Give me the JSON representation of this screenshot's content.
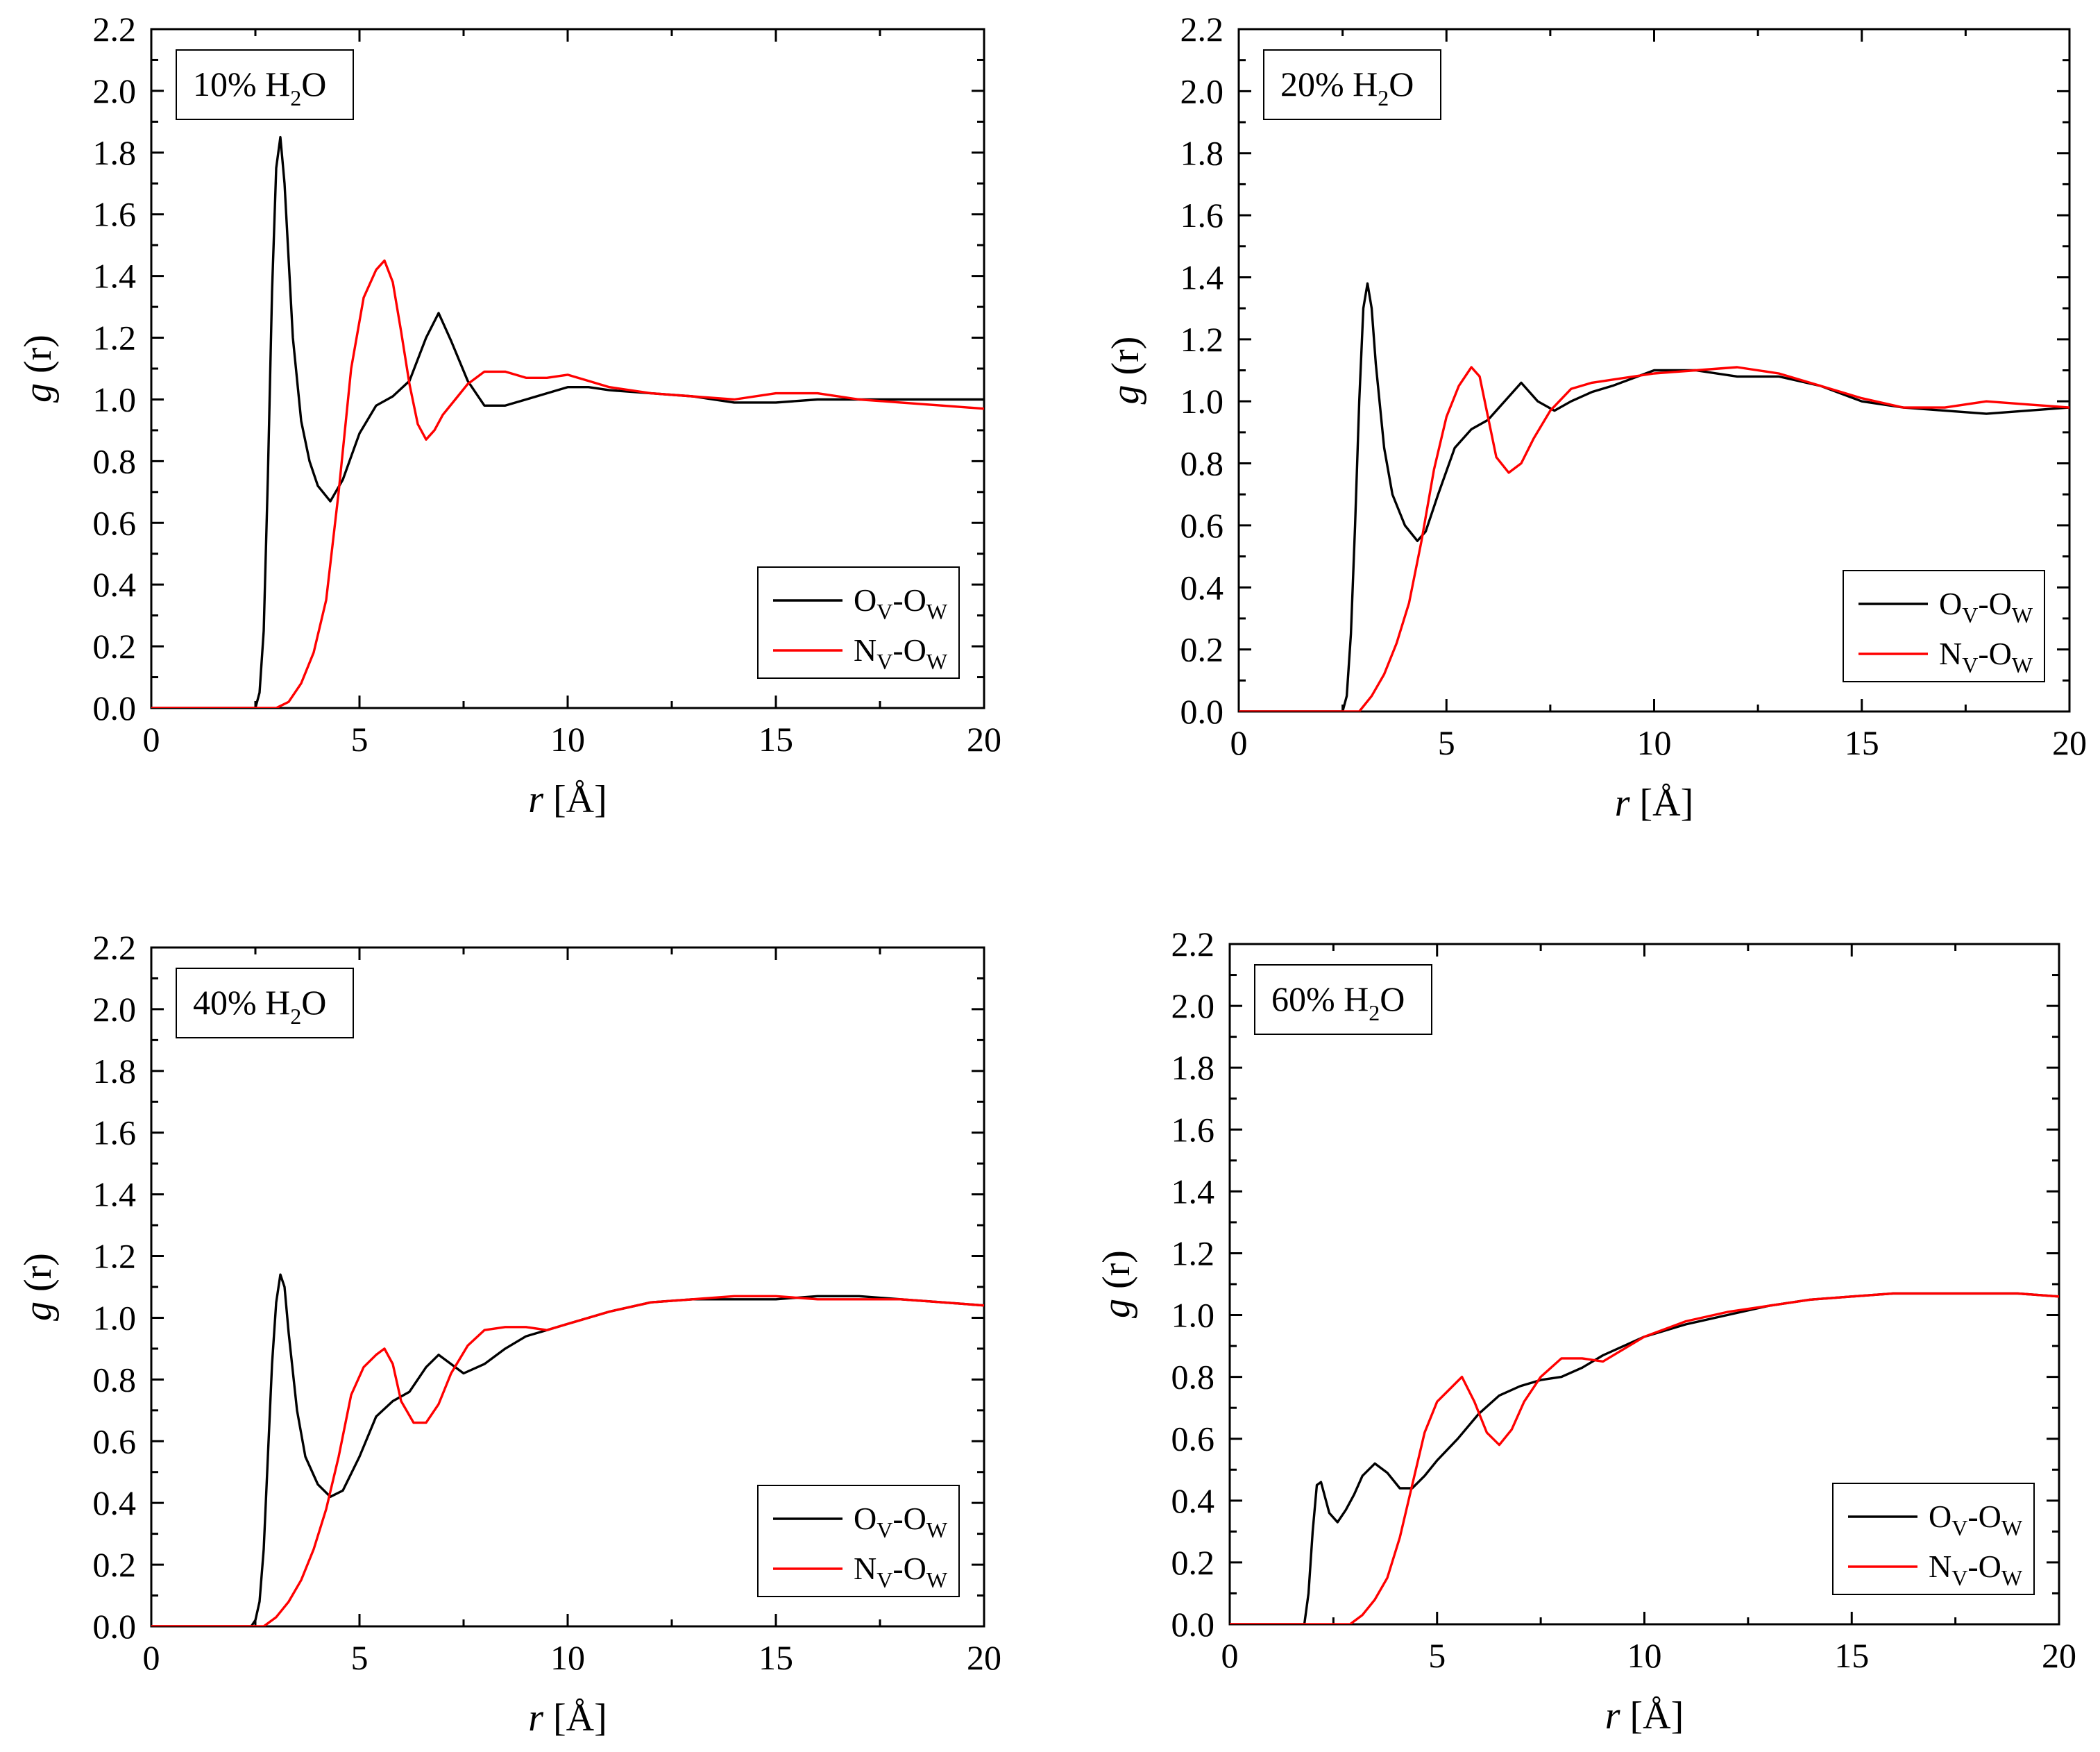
{
  "chart_data": [
    {
      "type": "line",
      "panel_label": "10% H2O",
      "label_pre": "10% H",
      "label_sub": "2",
      "label_post": "O",
      "xlabel_italic": "r",
      "xlabel_rest": " [Å]",
      "ylabel_italic": "g",
      "ylabel_rest": " (r)",
      "xlim": [
        0,
        20
      ],
      "ylim": [
        0,
        2.2
      ],
      "xticks": [
        0,
        5,
        10,
        15,
        20
      ],
      "yticks": [
        0.0,
        0.2,
        0.4,
        0.6,
        0.8,
        1.0,
        1.2,
        1.4,
        1.6,
        1.8,
        2.0,
        2.2
      ],
      "legend_position": "bottom-right",
      "series": [
        {
          "name": "OV-OW",
          "label_a": "O",
          "sub_a": "V",
          "label_b": "-O",
          "sub_b": "W",
          "color": "#000000",
          "x": [
            0,
            2.5,
            2.6,
            2.7,
            2.8,
            2.9,
            3.0,
            3.1,
            3.2,
            3.3,
            3.4,
            3.6,
            3.8,
            4.0,
            4.3,
            4.6,
            5.0,
            5.4,
            5.8,
            6.2,
            6.6,
            6.9,
            7.2,
            7.6,
            8.0,
            8.5,
            9.0,
            9.5,
            10.0,
            10.5,
            11.0,
            12.0,
            13.0,
            14.0,
            15.0,
            16.0,
            17.0,
            18.0,
            19.0,
            20.0
          ],
          "y": [
            0,
            0,
            0.05,
            0.25,
            0.75,
            1.35,
            1.75,
            1.85,
            1.7,
            1.45,
            1.2,
            0.93,
            0.8,
            0.72,
            0.67,
            0.74,
            0.89,
            0.98,
            1.01,
            1.06,
            1.2,
            1.28,
            1.19,
            1.06,
            0.98,
            0.98,
            1.0,
            1.02,
            1.04,
            1.04,
            1.03,
            1.02,
            1.01,
            0.99,
            0.99,
            1.0,
            1.0,
            1.0,
            1.0,
            1.0
          ]
        },
        {
          "name": "NV-OW",
          "label_a": "N",
          "sub_a": "V",
          "label_b": "-O",
          "sub_b": "W",
          "color": "#ff0000",
          "x": [
            0,
            3.0,
            3.3,
            3.6,
            3.9,
            4.2,
            4.5,
            4.8,
            5.1,
            5.4,
            5.6,
            5.8,
            6.0,
            6.2,
            6.4,
            6.6,
            6.8,
            7.0,
            7.3,
            7.6,
            8.0,
            8.5,
            9.0,
            9.5,
            10.0,
            10.5,
            11.0,
            12.0,
            13.0,
            14.0,
            15.0,
            16.0,
            17.0,
            18.0,
            19.0,
            20.0
          ],
          "y": [
            0,
            0,
            0.02,
            0.08,
            0.18,
            0.35,
            0.7,
            1.1,
            1.33,
            1.42,
            1.45,
            1.38,
            1.22,
            1.05,
            0.92,
            0.87,
            0.9,
            0.95,
            1.0,
            1.05,
            1.09,
            1.09,
            1.07,
            1.07,
            1.08,
            1.06,
            1.04,
            1.02,
            1.01,
            1.0,
            1.02,
            1.02,
            1.0,
            0.99,
            0.98,
            0.97
          ]
        }
      ]
    },
    {
      "type": "line",
      "panel_label": "20% H2O",
      "label_pre": "20% H",
      "label_sub": "2",
      "label_post": "O",
      "xlabel_italic": "r",
      "xlabel_rest": " [Å]",
      "ylabel_italic": "g",
      "ylabel_rest": " (r)",
      "xlim": [
        0,
        20
      ],
      "ylim": [
        0,
        2.2
      ],
      "xticks": [
        0,
        5,
        10,
        15,
        20
      ],
      "yticks": [
        0.0,
        0.2,
        0.4,
        0.6,
        0.8,
        1.0,
        1.2,
        1.4,
        1.6,
        1.8,
        2.0,
        2.2
      ],
      "legend_position": "bottom-right",
      "series": [
        {
          "name": "OV-OW",
          "label_a": "O",
          "sub_a": "V",
          "label_b": "-O",
          "sub_b": "W",
          "color": "#000000",
          "x": [
            0,
            2.5,
            2.6,
            2.7,
            2.8,
            2.9,
            3.0,
            3.1,
            3.2,
            3.3,
            3.5,
            3.7,
            4.0,
            4.3,
            4.5,
            4.8,
            5.2,
            5.6,
            6.0,
            6.4,
            6.8,
            7.2,
            7.6,
            8.0,
            8.5,
            9.0,
            10.0,
            11.0,
            12.0,
            13.0,
            14.0,
            15.0,
            16.0,
            17.0,
            18.0,
            19.0,
            20.0
          ],
          "y": [
            0,
            0,
            0.05,
            0.25,
            0.6,
            1.0,
            1.3,
            1.38,
            1.3,
            1.12,
            0.85,
            0.7,
            0.6,
            0.55,
            0.58,
            0.7,
            0.85,
            0.91,
            0.94,
            1.0,
            1.06,
            1.0,
            0.97,
            1.0,
            1.03,
            1.05,
            1.1,
            1.1,
            1.08,
            1.08,
            1.05,
            1.0,
            0.98,
            0.97,
            0.96,
            0.97,
            0.98
          ]
        },
        {
          "name": "NV-OW",
          "label_a": "N",
          "sub_a": "V",
          "label_b": "-O",
          "sub_b": "W",
          "color": "#ff0000",
          "x": [
            0,
            2.9,
            3.2,
            3.5,
            3.8,
            4.1,
            4.4,
            4.7,
            5.0,
            5.3,
            5.6,
            5.8,
            6.0,
            6.2,
            6.5,
            6.8,
            7.1,
            7.5,
            8.0,
            8.5,
            9.0,
            10.0,
            11.0,
            12.0,
            13.0,
            14.0,
            15.0,
            16.0,
            17.0,
            18.0,
            19.0,
            20.0
          ],
          "y": [
            0,
            0,
            0.05,
            0.12,
            0.22,
            0.35,
            0.55,
            0.78,
            0.95,
            1.05,
            1.11,
            1.08,
            0.95,
            0.82,
            0.77,
            0.8,
            0.88,
            0.97,
            1.04,
            1.06,
            1.07,
            1.09,
            1.1,
            1.11,
            1.09,
            1.05,
            1.01,
            0.98,
            0.98,
            1.0,
            0.99,
            0.98
          ]
        }
      ]
    },
    {
      "type": "line",
      "panel_label": "40% H2O",
      "label_pre": "40% H",
      "label_sub": "2",
      "label_post": "O",
      "xlabel_italic": "r",
      "xlabel_rest": " [Å]",
      "ylabel_italic": "g",
      "ylabel_rest": " (r)",
      "xlim": [
        0,
        20
      ],
      "ylim": [
        0,
        2.2
      ],
      "xticks": [
        0,
        5,
        10,
        15,
        20
      ],
      "yticks": [
        0.0,
        0.2,
        0.4,
        0.6,
        0.8,
        1.0,
        1.2,
        1.4,
        1.6,
        1.8,
        2.0,
        2.2
      ],
      "legend_position": "bottom-right",
      "series": [
        {
          "name": "OV-OW",
          "label_a": "O",
          "sub_a": "V",
          "label_b": "-O",
          "sub_b": "W",
          "color": "#000000",
          "x": [
            0,
            2.4,
            2.5,
            2.6,
            2.7,
            2.8,
            2.9,
            3.0,
            3.1,
            3.2,
            3.3,
            3.5,
            3.7,
            4.0,
            4.3,
            4.6,
            5.0,
            5.4,
            5.8,
            6.2,
            6.6,
            6.9,
            7.2,
            7.5,
            8.0,
            8.5,
            9.0,
            9.5,
            10.0,
            11.0,
            12.0,
            13.0,
            14.0,
            15.0,
            16.0,
            17.0,
            18.0,
            19.0,
            20.0
          ],
          "y": [
            0,
            0,
            0.02,
            0.08,
            0.25,
            0.55,
            0.85,
            1.05,
            1.14,
            1.1,
            0.95,
            0.7,
            0.55,
            0.46,
            0.42,
            0.44,
            0.55,
            0.68,
            0.73,
            0.76,
            0.84,
            0.88,
            0.85,
            0.82,
            0.85,
            0.9,
            0.94,
            0.96,
            0.98,
            1.02,
            1.05,
            1.06,
            1.06,
            1.06,
            1.07,
            1.07,
            1.06,
            1.05,
            1.04
          ]
        },
        {
          "name": "NV-OW",
          "label_a": "N",
          "sub_a": "V",
          "label_b": "-O",
          "sub_b": "W",
          "color": "#ff0000",
          "x": [
            0,
            2.7,
            3.0,
            3.3,
            3.6,
            3.9,
            4.2,
            4.5,
            4.8,
            5.1,
            5.4,
            5.6,
            5.8,
            6.0,
            6.3,
            6.6,
            6.9,
            7.2,
            7.6,
            8.0,
            8.5,
            9.0,
            9.5,
            10.0,
            11.0,
            12.0,
            13.0,
            14.0,
            15.0,
            16.0,
            17.0,
            18.0,
            19.0,
            20.0
          ],
          "y": [
            0,
            0,
            0.03,
            0.08,
            0.15,
            0.25,
            0.38,
            0.55,
            0.75,
            0.84,
            0.88,
            0.9,
            0.85,
            0.73,
            0.66,
            0.66,
            0.72,
            0.82,
            0.91,
            0.96,
            0.97,
            0.97,
            0.96,
            0.98,
            1.02,
            1.05,
            1.06,
            1.07,
            1.07,
            1.06,
            1.06,
            1.06,
            1.05,
            1.04
          ]
        }
      ]
    },
    {
      "type": "line",
      "panel_label": "60% H2O",
      "label_pre": "60% H",
      "label_sub": "2",
      "label_post": "O",
      "xlabel_italic": "r",
      "xlabel_rest": " [Å]",
      "ylabel_italic": "g",
      "ylabel_rest": " (r)",
      "xlim": [
        0,
        20
      ],
      "ylim": [
        0,
        2.2
      ],
      "xticks": [
        0,
        5,
        10,
        15,
        20
      ],
      "yticks": [
        0.0,
        0.2,
        0.4,
        0.6,
        0.8,
        1.0,
        1.2,
        1.4,
        1.6,
        1.8,
        2.0,
        2.2
      ],
      "legend_position": "bottom-right",
      "series": [
        {
          "name": "OV-OW",
          "label_a": "O",
          "sub_a": "V",
          "label_b": "-O",
          "sub_b": "W",
          "color": "#000000",
          "x": [
            0,
            1.8,
            1.9,
            2.0,
            2.1,
            2.2,
            2.4,
            2.6,
            2.8,
            3.0,
            3.2,
            3.5,
            3.8,
            4.1,
            4.4,
            4.7,
            5.0,
            5.5,
            6.0,
            6.5,
            7.0,
            7.5,
            8.0,
            8.5,
            9.0,
            10.0,
            11.0,
            12.0,
            13.0,
            14.0,
            15.0,
            16.0,
            17.0,
            18.0,
            19.0,
            20.0
          ],
          "y": [
            0,
            0,
            0.1,
            0.3,
            0.45,
            0.46,
            0.36,
            0.33,
            0.37,
            0.42,
            0.48,
            0.52,
            0.49,
            0.44,
            0.44,
            0.48,
            0.53,
            0.6,
            0.68,
            0.74,
            0.77,
            0.79,
            0.8,
            0.83,
            0.87,
            0.93,
            0.97,
            1.0,
            1.03,
            1.05,
            1.06,
            1.07,
            1.07,
            1.07,
            1.07,
            1.06
          ]
        },
        {
          "name": "NV-OW",
          "label_a": "N",
          "sub_a": "V",
          "label_b": "-O",
          "sub_b": "W",
          "color": "#ff0000",
          "x": [
            0,
            2.9,
            3.2,
            3.5,
            3.8,
            4.1,
            4.4,
            4.7,
            5.0,
            5.3,
            5.6,
            5.9,
            6.2,
            6.5,
            6.8,
            7.1,
            7.5,
            8.0,
            8.5,
            9.0,
            10.0,
            11.0,
            12.0,
            13.0,
            14.0,
            15.0,
            16.0,
            17.0,
            18.0,
            19.0,
            20.0
          ],
          "y": [
            0,
            0,
            0.03,
            0.08,
            0.15,
            0.28,
            0.45,
            0.62,
            0.72,
            0.76,
            0.8,
            0.72,
            0.62,
            0.58,
            0.63,
            0.72,
            0.8,
            0.86,
            0.86,
            0.85,
            0.93,
            0.98,
            1.01,
            1.03,
            1.05,
            1.06,
            1.07,
            1.07,
            1.07,
            1.07,
            1.06
          ]
        }
      ]
    }
  ]
}
